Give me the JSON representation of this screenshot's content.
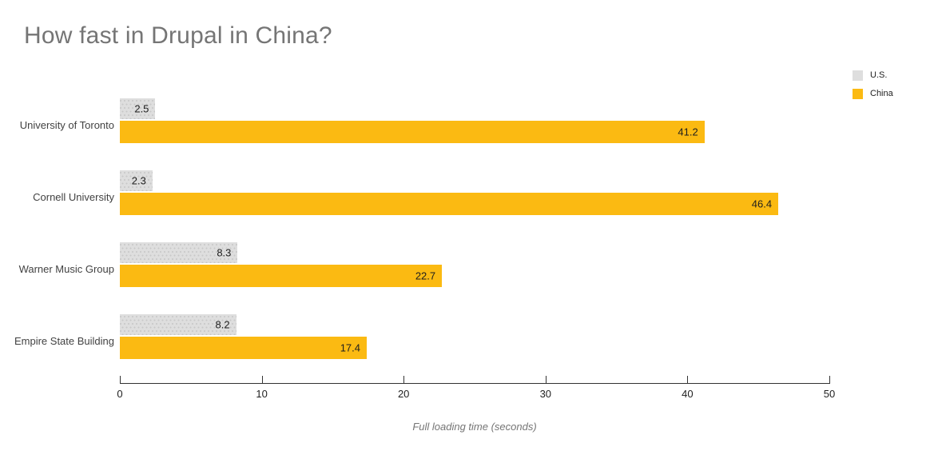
{
  "chart_data": {
    "type": "bar",
    "orientation": "horizontal",
    "title": "How fast in Drupal in China?",
    "xlabel": "Full loading time (seconds)",
    "categories": [
      "University of Toronto",
      "Cornell University",
      "Warner Music Group",
      "Empire State Building"
    ],
    "series": [
      {
        "name": "U.S.",
        "color": "#dedede",
        "values": [
          2.5,
          2.3,
          8.3,
          8.2
        ]
      },
      {
        "name": "China",
        "color": "#fbba12",
        "values": [
          41.2,
          46.4,
          22.7,
          17.4
        ]
      }
    ],
    "xlim": [
      0,
      50
    ],
    "xticks": [
      0,
      10,
      20,
      30,
      40,
      50
    ],
    "grid": false,
    "legend_position": "top-right",
    "value_labels": "inside-end",
    "colors": {
      "title_text": "#757575",
      "category_text": "#424242",
      "value_text": "#1e1e1e",
      "axis": "#333333"
    }
  }
}
